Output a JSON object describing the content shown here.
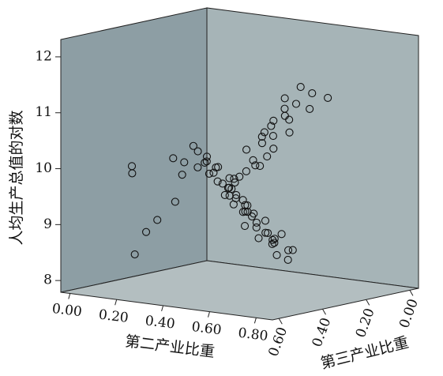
{
  "chart_data": {
    "type": "scatter3d",
    "x_label": "第二产业比重",
    "y_label": "人均生产总值的对数",
    "z_label": "第三产业比重",
    "xlim": [
      -0.04,
      0.87
    ],
    "ylim": [
      7.79,
      12.31
    ],
    "zlim": [
      -0.04,
      0.63
    ],
    "xticks": [
      {
        "value": 0,
        "label": "0.00"
      },
      {
        "value": 0.2,
        "label": "0.20"
      },
      {
        "value": 0.4,
        "label": "0.40"
      },
      {
        "value": 0.6,
        "label": "0.60"
      },
      {
        "value": 0.8,
        "label": "0.80"
      }
    ],
    "yticks": [
      8,
      9,
      10,
      11,
      12
    ],
    "zticks": [
      {
        "value": 0.6,
        "label": "0.60"
      },
      {
        "value": 0.4,
        "label": "0.40"
      },
      {
        "value": 0.2,
        "label": "0.20"
      },
      {
        "value": 0,
        "label": "0.00"
      }
    ],
    "color": "#111111",
    "x": [
      0.05,
      0.07,
      0.45,
      0.48,
      0.52,
      0.4,
      0.38,
      0.55,
      0.6,
      0.47,
      0.5,
      0.42,
      0.35,
      0.58,
      0.62,
      0.44,
      0.49,
      0.53,
      0.41,
      0.46,
      0.39,
      0.57,
      0.51,
      0.43,
      0.36,
      0.48,
      0.54,
      0.45,
      0.59,
      0.5,
      0.4,
      0.47,
      0.52,
      0.44,
      0.56,
      0.38,
      0.61,
      0.49,
      0.42,
      0.53,
      0.46,
      0.34,
      0.55,
      0.5,
      0.48,
      0.43,
      0.57,
      0.41,
      0.51,
      0.45,
      0.3,
      0.28,
      0.33,
      0.25,
      0.47,
      0.52,
      0.49,
      0.44,
      0.58,
      0.54,
      0.4,
      0.46,
      0.63,
      0.37,
      0.5,
      0.48,
      0.55,
      0.42,
      0.45,
      0.53,
      0.6,
      0.39,
      0.47,
      0.51,
      0.44,
      0.56,
      0.49,
      0.43,
      0.46,
      0.52
    ],
    "z": [
      0.4,
      0.42,
      0.35,
      0.3,
      0.33,
      0.38,
      0.45,
      0.28,
      0.3,
      0.4,
      0.36,
      0.42,
      0.48,
      0.32,
      0.27,
      0.37,
      0.35,
      0.3,
      0.44,
      0.39,
      0.46,
      0.29,
      0.34,
      0.41,
      0.5,
      0.38,
      0.31,
      0.36,
      0.26,
      0.37,
      0.43,
      0.33,
      0.32,
      0.4,
      0.3,
      0.47,
      0.28,
      0.36,
      0.44,
      0.34,
      0.38,
      0.52,
      0.31,
      0.35,
      0.39,
      0.42,
      0.3,
      0.45,
      0.36,
      0.4,
      0.55,
      0.58,
      0.5,
      0.6,
      0.2,
      0.18,
      0.22,
      0.25,
      0.15,
      0.2,
      0.28,
      0.24,
      0.12,
      0.3,
      0.26,
      0.22,
      0.18,
      0.27,
      0.23,
      0.21,
      0.16,
      0.29,
      0.24,
      0.19,
      0.26,
      0.17,
      0.22,
      0.28,
      0.25,
      0.2
    ],
    "y": [
      9.9,
      9.8,
      9.5,
      9.2,
      9.0,
      9.8,
      10.1,
      8.7,
      8.9,
      9.6,
      9.3,
      10.0,
      10.2,
      8.8,
      8.6,
      9.7,
      9.4,
      9.1,
      10.3,
      9.9,
      10.4,
      8.5,
      9.2,
      10.1,
      10.0,
      9.6,
      8.9,
      9.4,
      8.4,
      9.3,
      10.2,
      9.0,
      8.8,
      9.8,
      8.7,
      10.5,
      8.6,
      9.5,
      10.0,
      9.1,
      9.7,
      10.3,
      8.9,
      9.4,
      9.9,
      10.1,
      8.8,
      10.2,
      9.3,
      9.6,
      9.2,
      9.0,
      9.5,
      8.6,
      10.5,
      10.8,
      10.3,
      10.0,
      11.0,
      10.6,
      9.8,
      10.4,
      11.2,
      9.6,
      10.2,
      10.7,
      11.1,
      9.9,
      10.5,
      10.9,
      11.3,
      9.7,
      10.6,
      11.0,
      10.1,
      11.4,
      10.8,
      10.3,
      10.0,
      11.2
    ]
  }
}
